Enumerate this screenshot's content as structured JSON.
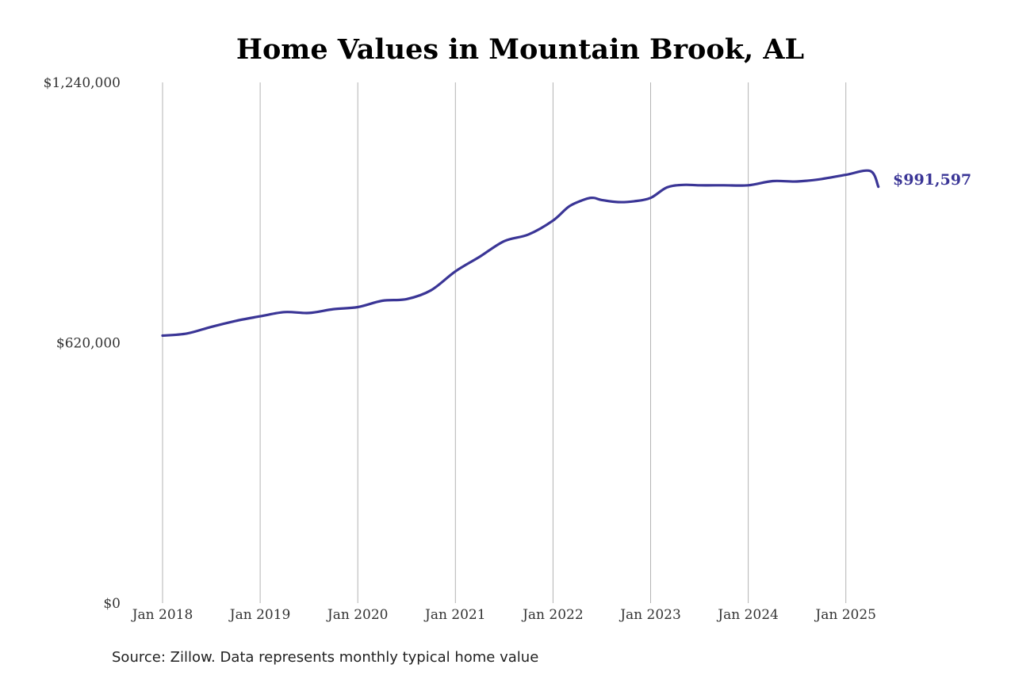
{
  "chart_data": {
    "type": "line",
    "title": "Home Values in Mountain Brook, AL",
    "source": "Source: Zillow. Data represents monthly typical home value",
    "xlabel": "",
    "ylabel": "",
    "ylim": [
      0,
      1240000
    ],
    "y_ticks": [
      {
        "value": 0,
        "label": "$0"
      },
      {
        "value": 620000,
        "label": "$620,000"
      },
      {
        "value": 1240000,
        "label": "$1,240,000"
      }
    ],
    "x_ticks": [
      {
        "value": "2018-01",
        "label": "Jan 2018"
      },
      {
        "value": "2019-01",
        "label": "Jan 2019"
      },
      {
        "value": "2020-01",
        "label": "Jan 2020"
      },
      {
        "value": "2021-01",
        "label": "Jan 2021"
      },
      {
        "value": "2022-01",
        "label": "Jan 2022"
      },
      {
        "value": "2023-01",
        "label": "Jan 2023"
      },
      {
        "value": "2024-01",
        "label": "Jan 2024"
      },
      {
        "value": "2025-01",
        "label": "Jan 2025"
      }
    ],
    "grid": "vertical",
    "line_color": "#3a3596",
    "end_label": "$991,597",
    "series": [
      {
        "x": [
          "2018-01",
          "2018-04",
          "2018-07",
          "2018-10",
          "2019-01",
          "2019-04",
          "2019-07",
          "2019-10",
          "2020-01",
          "2020-04",
          "2020-07",
          "2020-10",
          "2021-01",
          "2021-04",
          "2021-07",
          "2021-10",
          "2022-01",
          "2022-03",
          "2022-05",
          "2022-06",
          "2022-07",
          "2022-09",
          "2022-11",
          "2023-01",
          "2023-03",
          "2023-05",
          "2023-07",
          "2023-10",
          "2024-01",
          "2024-04",
          "2024-07",
          "2024-10",
          "2025-01",
          "2025-04",
          "2025-05"
        ],
        "y": [
          637000,
          642000,
          658000,
          672000,
          683000,
          693000,
          691000,
          700000,
          705000,
          720000,
          724000,
          745000,
          790000,
          825000,
          862000,
          878000,
          911000,
          945000,
          962000,
          965000,
          960000,
          955000,
          957000,
          965000,
          990000,
          996000,
          995000,
          995000,
          995000,
          1005000,
          1004000,
          1010000,
          1020000,
          1029000,
          991597
        ]
      }
    ]
  }
}
